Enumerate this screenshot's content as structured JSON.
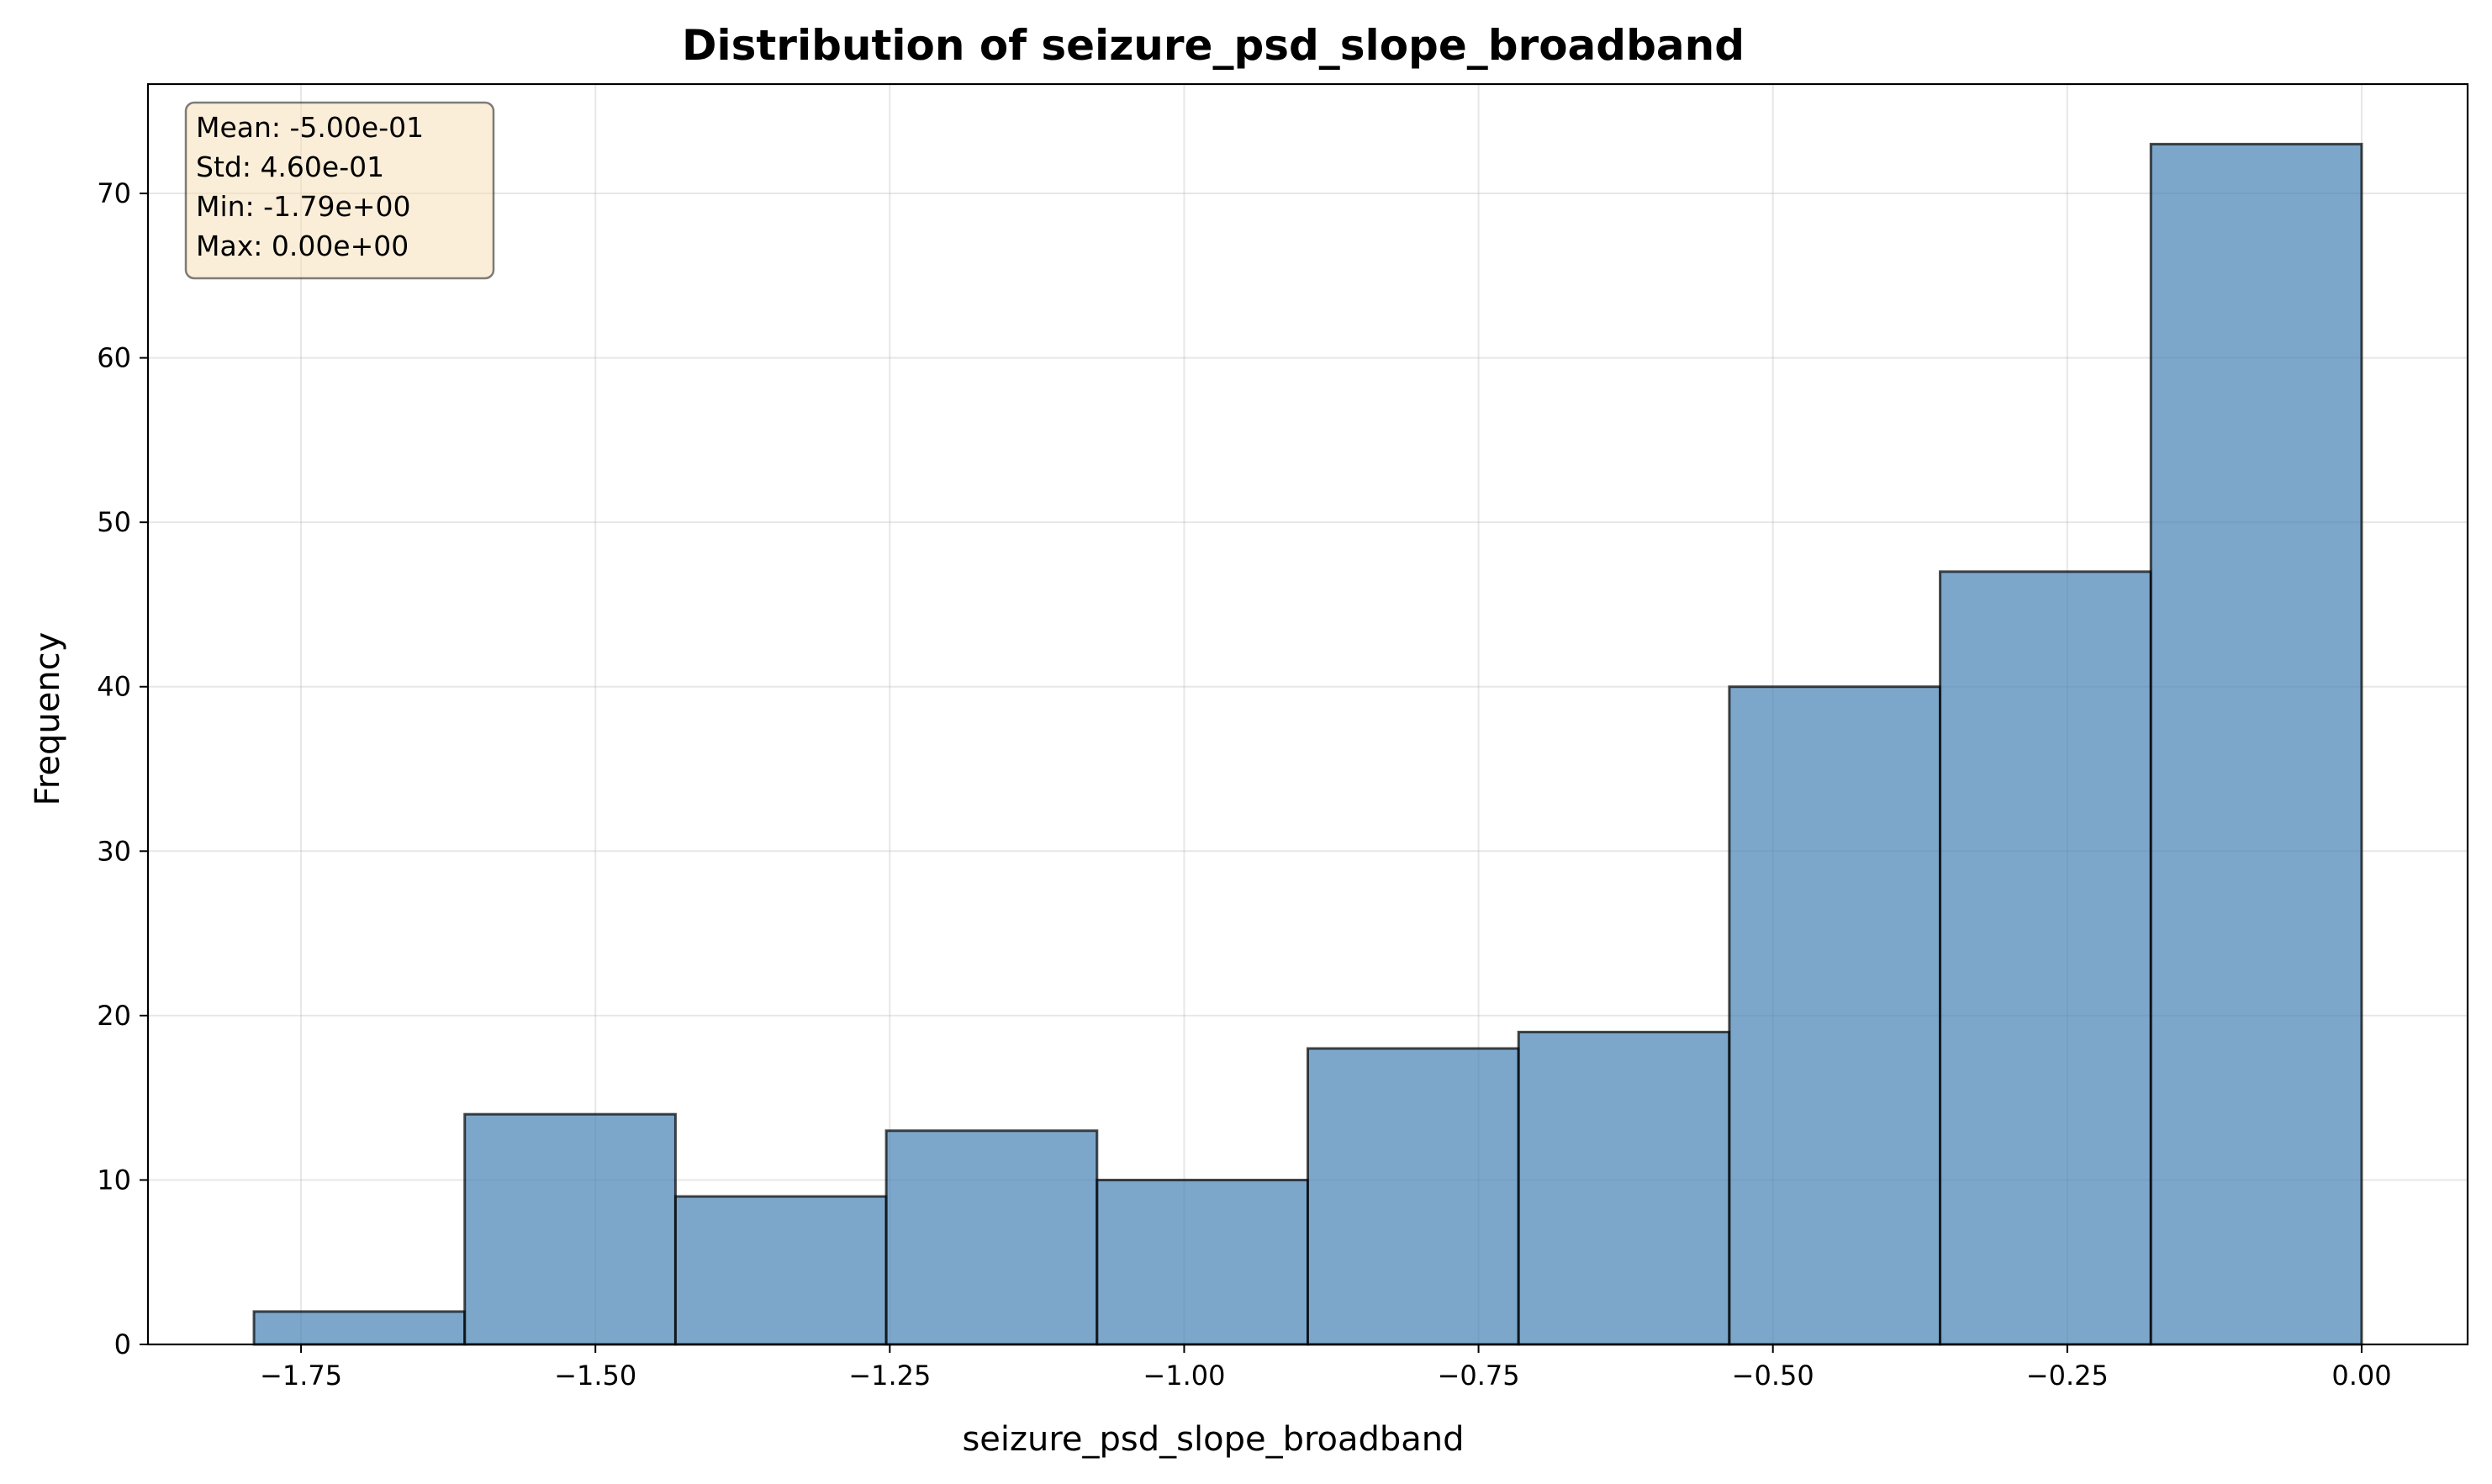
{
  "chart_data": {
    "type": "bar",
    "title": "Distribution of seizure_psd_slope_broadband",
    "xlabel": "seizure_psd_slope_broadband",
    "ylabel": "Frequency",
    "xlim": [
      -1.88,
      0.09
    ],
    "ylim": [
      0,
      76.65
    ],
    "grid": true,
    "bin_edges": [
      -1.79,
      -1.611,
      -1.432,
      -1.253,
      -1.074,
      -0.895,
      -0.716,
      -0.537,
      -0.358,
      -0.179,
      0.0
    ],
    "values": [
      2,
      14,
      9,
      13,
      10,
      18,
      19,
      40,
      47,
      73
    ],
    "x_ticks": [
      -1.75,
      -1.5,
      -1.25,
      -1.0,
      -0.75,
      -0.5,
      -0.25,
      0.0
    ],
    "x_tick_labels": [
      "−1.75",
      "−1.50",
      "−1.25",
      "−1.00",
      "−0.75",
      "−0.50",
      "−0.25",
      "0.00"
    ],
    "y_ticks": [
      0,
      10,
      20,
      30,
      40,
      50,
      60,
      70
    ],
    "y_tick_labels": [
      "0",
      "10",
      "20",
      "30",
      "40",
      "50",
      "60",
      "70"
    ],
    "bar_color": "#4682b4",
    "bar_edge_color": "#000000",
    "stats_box": {
      "lines": [
        "Mean: -5.00e-01",
        "Std: 4.60e-01",
        "Min: -1.79e+00",
        "Max: 0.00e+00"
      ],
      "background": "#f5deb3"
    }
  }
}
